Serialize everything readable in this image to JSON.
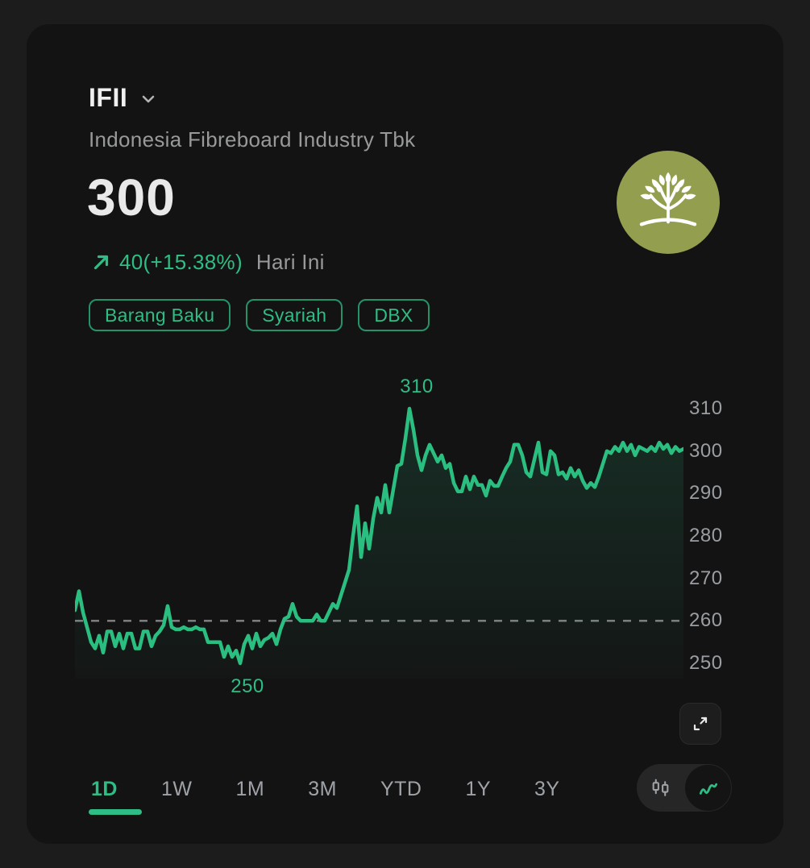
{
  "theme": {
    "accent": "#2ebd85",
    "line_green": "#2abf80",
    "logo_olive": "#939e4f",
    "card_bg": "#131313",
    "page_bg": "#1c1c1c",
    "muted_text": "#97999b",
    "bright_text": "#e9e9e9"
  },
  "header": {
    "ticker": "IFII",
    "company": "Indonesia Fibreboard Industry Tbk"
  },
  "quote": {
    "price": "300",
    "change_text": "40(+15.38%)",
    "change_direction": "up",
    "period_label": "Hari Ini"
  },
  "tags": [
    {
      "label": "Barang Baku"
    },
    {
      "label": "Syariah"
    },
    {
      "label": "DBX"
    }
  ],
  "chart_data": {
    "type": "line",
    "title": "IFII 1D intraday price",
    "xlabel": "",
    "ylabel": "",
    "x_axis": {
      "tick_labels_shown": false,
      "note": "intraday time, unlabeled"
    },
    "ylim": [
      250,
      310
    ],
    "yticks": [
      "310",
      "300",
      "290",
      "280",
      "270",
      "260",
      "250"
    ],
    "prev_close": 260,
    "high_annotation": "310",
    "low_annotation": "250",
    "grid": false,
    "legend": "none",
    "ref_line_style": "dashed",
    "line_color": "#2abf80",
    "series": [
      {
        "name": "price",
        "values": [
          262.5,
          267,
          262,
          258.5,
          255,
          253.5,
          256.5,
          252.5,
          257.5,
          257.5,
          254,
          257,
          253.5,
          257,
          257,
          253.5,
          253.5,
          257.5,
          257.5,
          254,
          256.5,
          257.5,
          259,
          263.5,
          258.5,
          258,
          258,
          258.5,
          258,
          258,
          258.5,
          258,
          258,
          255,
          255,
          255,
          255,
          251.5,
          254,
          251.5,
          253,
          250,
          254.5,
          256.5,
          253.5,
          257,
          254,
          255.5,
          256,
          257,
          254.5,
          258,
          260.5,
          261,
          264,
          261,
          260,
          260,
          260,
          260,
          261.5,
          260,
          260,
          262,
          264,
          263,
          266,
          269,
          272,
          280,
          287,
          275,
          283,
          277,
          284,
          289,
          285.5,
          292,
          285.5,
          291,
          296.5,
          297,
          303,
          310,
          305,
          299,
          295.5,
          299,
          301.5,
          299.5,
          297.5,
          299,
          296,
          297,
          292.5,
          290.5,
          290.5,
          294,
          291,
          294,
          292,
          292,
          289.5,
          293,
          291.8,
          291.8,
          294,
          296,
          297.5,
          301.5,
          301.5,
          299,
          295,
          294,
          298,
          302,
          295,
          294.5,
          300,
          299,
          294.5,
          295,
          293.5,
          296,
          294,
          295.5,
          293,
          291.3,
          292.5,
          291.5,
          294,
          297,
          300,
          299.5,
          301,
          300,
          302,
          300,
          301.5,
          299,
          301,
          300.5,
          300,
          301,
          300,
          302,
          300.5,
          301.5,
          299.5,
          301,
          300,
          300.5
        ]
      }
    ]
  },
  "timeframes": [
    {
      "label": "1D",
      "active": true
    },
    {
      "label": "1W",
      "active": false
    },
    {
      "label": "1M",
      "active": false
    },
    {
      "label": "3M",
      "active": false
    },
    {
      "label": "YTD",
      "active": false
    },
    {
      "label": "1Y",
      "active": false
    },
    {
      "label": "3Y",
      "active": false
    }
  ],
  "chart_controls": {
    "expand": "expand-chart",
    "chart_types": [
      {
        "name": "candlestick",
        "active": false
      },
      {
        "name": "line",
        "active": true
      }
    ]
  }
}
